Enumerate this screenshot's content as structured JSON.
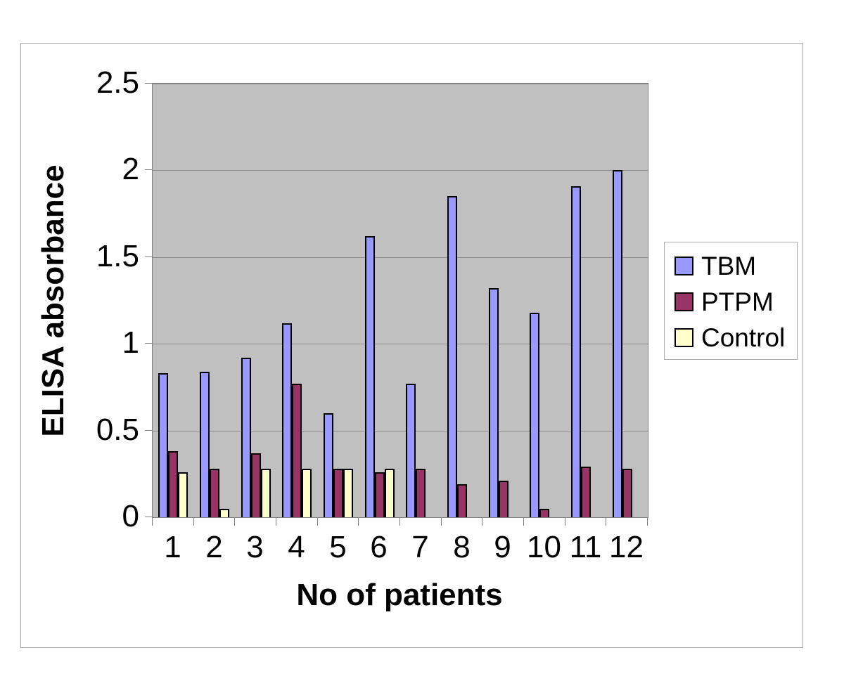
{
  "chart_data": {
    "type": "bar",
    "title": "",
    "xlabel": "No of patients",
    "ylabel": "ELISA absorbance",
    "categories": [
      "1",
      "2",
      "3",
      "4",
      "5",
      "6",
      "7",
      "8",
      "9",
      "10",
      "11",
      "12"
    ],
    "series": [
      {
        "name": "TBM",
        "color": "#9999FF",
        "values": [
          0.83,
          0.84,
          0.92,
          1.12,
          0.6,
          1.62,
          0.77,
          1.85,
          1.32,
          1.18,
          1.91,
          2.0
        ]
      },
      {
        "name": "PTPM",
        "color": "#993366",
        "values": [
          0.38,
          0.28,
          0.37,
          0.77,
          0.28,
          0.26,
          0.28,
          0.19,
          0.21,
          0.05,
          0.29,
          0.28
        ]
      },
      {
        "name": "Control",
        "color": "#FFFFCC",
        "values": [
          0.26,
          0.05,
          0.28,
          0.28,
          0.28,
          0.28,
          0,
          0,
          0,
          0,
          0,
          0
        ]
      }
    ],
    "ylim": [
      0,
      2.5
    ],
    "ytick_step": 0.5,
    "ytick_labels": [
      "0",
      "0.5",
      "1",
      "1.5",
      "2",
      "2.5"
    ],
    "grid": true,
    "legend_position": "right",
    "plot_bg": "#C0C0C0",
    "bar_outline": "#000000"
  }
}
